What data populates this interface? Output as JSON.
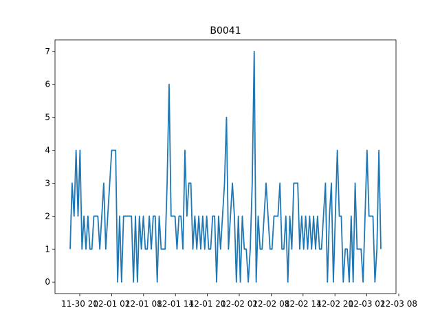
{
  "chart_data": {
    "type": "line",
    "title": "B0041",
    "xlabel": "",
    "ylabel": "",
    "x_tick_labels": [
      "11-30 20",
      "12-01 02",
      "12-01 08",
      "12-01 14",
      "12-01 20",
      "12-02 02",
      "12-02 08",
      "12-02 14",
      "12-02 20",
      "12-03 02",
      "12-03 08"
    ],
    "y_ticks": [
      0,
      1,
      2,
      3,
      4,
      5,
      6,
      7
    ],
    "grid": false,
    "color": "#1f77b4",
    "series": [
      {
        "name": "",
        "values": [
          1,
          3,
          2,
          4,
          2,
          4,
          1,
          2,
          1,
          2,
          1,
          1,
          2,
          2,
          2,
          1,
          2,
          3,
          1,
          2,
          3,
          4,
          4,
          4,
          0,
          2,
          0,
          2,
          2,
          2,
          2,
          2,
          0,
          2,
          0,
          2,
          1,
          2,
          1,
          1,
          2,
          1,
          2,
          2,
          0,
          2,
          1,
          1,
          1,
          3,
          6,
          2,
          2,
          2,
          1,
          2,
          2,
          1,
          4,
          2,
          3,
          3,
          1,
          2,
          1,
          2,
          1,
          2,
          1,
          2,
          1,
          1,
          2,
          2,
          0,
          2,
          1,
          2,
          3,
          5,
          1,
          2,
          3,
          2,
          0,
          2,
          0,
          2,
          1,
          1,
          0,
          1,
          3,
          7,
          0,
          2,
          1,
          1,
          2,
          3,
          2,
          1,
          1,
          2,
          2,
          2,
          3,
          1,
          1,
          2,
          0,
          2,
          1,
          3,
          3,
          3,
          1,
          2,
          1,
          2,
          1,
          2,
          1,
          2,
          1,
          2,
          1,
          1,
          2,
          3,
          0,
          2,
          3,
          0,
          2,
          4,
          2,
          2,
          0,
          1,
          1,
          0,
          2,
          0,
          3,
          1,
          1,
          1,
          0,
          2,
          4,
          2,
          2,
          2,
          0,
          1,
          4,
          1
        ]
      }
    ]
  }
}
